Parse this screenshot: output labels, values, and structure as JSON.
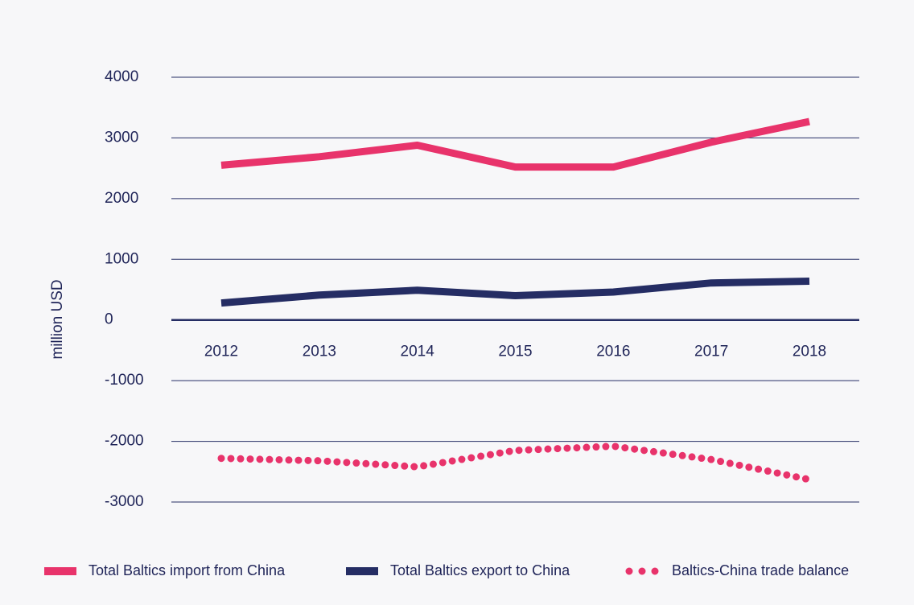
{
  "chart_data": {
    "type": "line",
    "y_label": "million USD",
    "categories": [
      "2012",
      "2013",
      "2014",
      "2015",
      "2016",
      "2017",
      "2018"
    ],
    "series": [
      {
        "name": "Total Baltics import from China",
        "color": "#e8336b",
        "style": "solid",
        "values": [
          2550,
          2690,
          2880,
          2520,
          2520,
          2930,
          3270
        ]
      },
      {
        "name": "Total Baltics export to China",
        "color": "#252d64",
        "style": "solid",
        "values": [
          280,
          410,
          490,
          400,
          460,
          610,
          640
        ]
      },
      {
        "name": "Baltics-China trade balance",
        "color": "#e8336b",
        "style": "dotted",
        "values": [
          -2280,
          -2320,
          -2420,
          -2150,
          -2080,
          -2300,
          -2630
        ]
      }
    ],
    "ylim": [
      -3000,
      4000
    ],
    "yticks": [
      -3000,
      -2000,
      -1000,
      0,
      1000,
      2000,
      3000,
      4000
    ],
    "grid": true,
    "legend": "bottom"
  }
}
